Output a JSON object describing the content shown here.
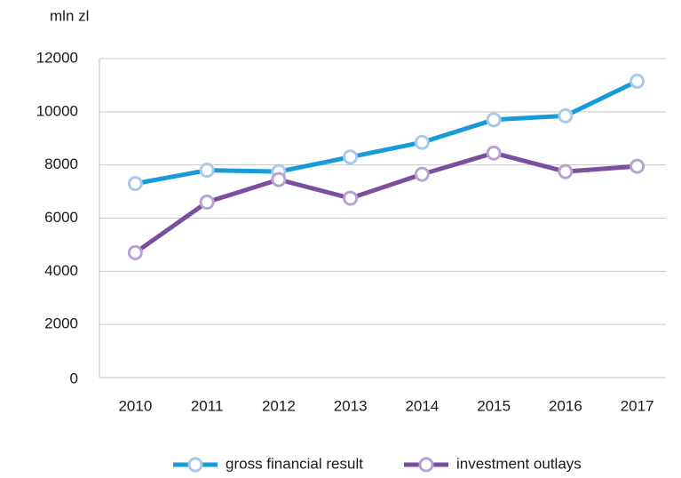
{
  "chart_data": {
    "type": "line",
    "y_axis_label": "mln zl",
    "categories": [
      "2010",
      "2011",
      "2012",
      "2013",
      "2014",
      "2015",
      "2016",
      "2017"
    ],
    "series": [
      {
        "name": "gross financial result",
        "color": "#1a9ad6",
        "marker_color": "#a9c9ea",
        "values": [
          7300,
          7800,
          7750,
          8300,
          8850,
          9700,
          9850,
          11150
        ]
      },
      {
        "name": "investment outlays",
        "color": "#7b4f9e",
        "marker_color": "#b7a3d2",
        "values": [
          4700,
          6600,
          7450,
          6750,
          7650,
          8450,
          7750,
          7950
        ]
      }
    ],
    "ylim": [
      0,
      12000
    ],
    "yticks": [
      0,
      2000,
      4000,
      6000,
      8000,
      10000,
      12000
    ],
    "grid": true
  }
}
